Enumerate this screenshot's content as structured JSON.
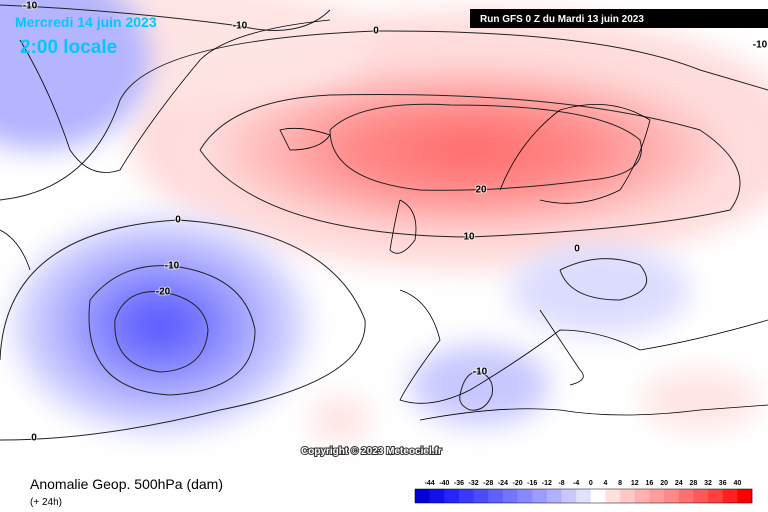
{
  "header": {
    "date": "Mercredi 14 juin 2023",
    "time": "2:00 locale",
    "run": "Run GFS 0 Z du Mardi 13 juin 2023"
  },
  "copyright": "Copyright © 2023 Meteociel.fr",
  "footer": {
    "product": "Anomalie Geop. 500hPa (dam)",
    "lead": "(+ 24h)"
  },
  "contour_labels": [
    -10,
    -10,
    0,
    0,
    -10,
    -20,
    20,
    10,
    0,
    -10,
    0,
    -10
  ],
  "colorbar": {
    "ticks": [
      -44,
      -40,
      -36,
      -32,
      -28,
      -24,
      -20,
      -16,
      -12,
      -8,
      -4,
      0,
      4,
      8,
      12,
      16,
      20,
      24,
      28,
      32,
      36,
      40
    ],
    "colors": [
      "#0000d8",
      "#1010f0",
      "#2424ff",
      "#3838ff",
      "#4c4cff",
      "#6060ff",
      "#7474ff",
      "#8888ff",
      "#9c9cff",
      "#b0b0ff",
      "#c8c8ff",
      "#e0e0ff",
      "#ffffff",
      "#ffe0e0",
      "#ffc8c8",
      "#ffb0b0",
      "#ff9c9c",
      "#ff8888",
      "#ff7070",
      "#ff5858",
      "#ff4040",
      "#ff2020",
      "#ff0000"
    ]
  }
}
